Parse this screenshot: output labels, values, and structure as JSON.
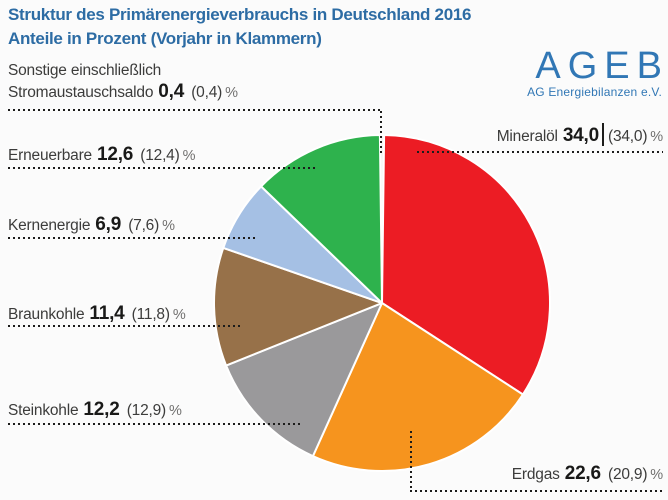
{
  "title": {
    "line1": "Struktur des Primärenergieverbrauchs in Deutschland 2016",
    "line2": "Anteile in Prozent (Vorjahr in Klammern)"
  },
  "logo": {
    "wordmark": "AGEB",
    "subtitle": "AG Energiebilanzen e.V.",
    "color": "#3177b5"
  },
  "labels": {
    "sonstige": {
      "line1": "Sonstige einschließlich",
      "line2": "Stromaustauschsaldo",
      "value": "0,4",
      "prev": "(0,4)",
      "unit": "%"
    },
    "erneuerbare": {
      "name": "Erneuerbare",
      "value": "12,6",
      "prev": "(12,4)",
      "unit": "%"
    },
    "kernenergie": {
      "name": "Kernenergie",
      "value": "6,9",
      "prev": "(7,6)",
      "unit": "%"
    },
    "braunkohle": {
      "name": "Braunkohle",
      "value": "11,4",
      "prev": "(11,8)",
      "unit": "%"
    },
    "steinkohle": {
      "name": "Steinkohle",
      "value": "12,2",
      "prev": "(12,9)",
      "unit": "%"
    },
    "mineraloel": {
      "name": "Mineralöl",
      "value": "34,0",
      "prev": "(34,0)",
      "unit": "%"
    },
    "erdgas": {
      "name": "Erdgas",
      "value": "22,6",
      "prev": "(20,9)",
      "unit": "%"
    }
  },
  "chart_data": {
    "type": "pie",
    "title": "Struktur des Primärenergieverbrauchs in Deutschland 2016",
    "subtitle": "Anteile in Prozent (Vorjahr in Klammern)",
    "unit": "%",
    "clockwise": true,
    "start_at_12_oclock": true,
    "first_slice_centered_on_top": true,
    "stroke_color": "#ffffff",
    "slices": [
      {
        "id": "sonstige",
        "label": "Sonstige einschließlich Stromaustauschsaldo",
        "value": 0.4,
        "prev_year": 0.4,
        "color": "#f4f4f4"
      },
      {
        "id": "mineraloel",
        "label": "Mineralöl",
        "value": 34.0,
        "prev_year": 34.0,
        "color": "#ec1c24"
      },
      {
        "id": "erdgas",
        "label": "Erdgas",
        "value": 22.6,
        "prev_year": 20.9,
        "color": "#f6941e"
      },
      {
        "id": "steinkohle",
        "label": "Steinkohle",
        "value": 12.2,
        "prev_year": 12.9,
        "color": "#9a999b"
      },
      {
        "id": "braunkohle",
        "label": "Braunkohle",
        "value": 11.4,
        "prev_year": 11.8,
        "color": "#977149"
      },
      {
        "id": "kernenergie",
        "label": "Kernenergie",
        "value": 6.9,
        "prev_year": 7.6,
        "color": "#a5c0e4"
      },
      {
        "id": "erneuerbare",
        "label": "Erneuerbare",
        "value": 12.6,
        "prev_year": 12.4,
        "color": "#2eb24d"
      }
    ]
  }
}
